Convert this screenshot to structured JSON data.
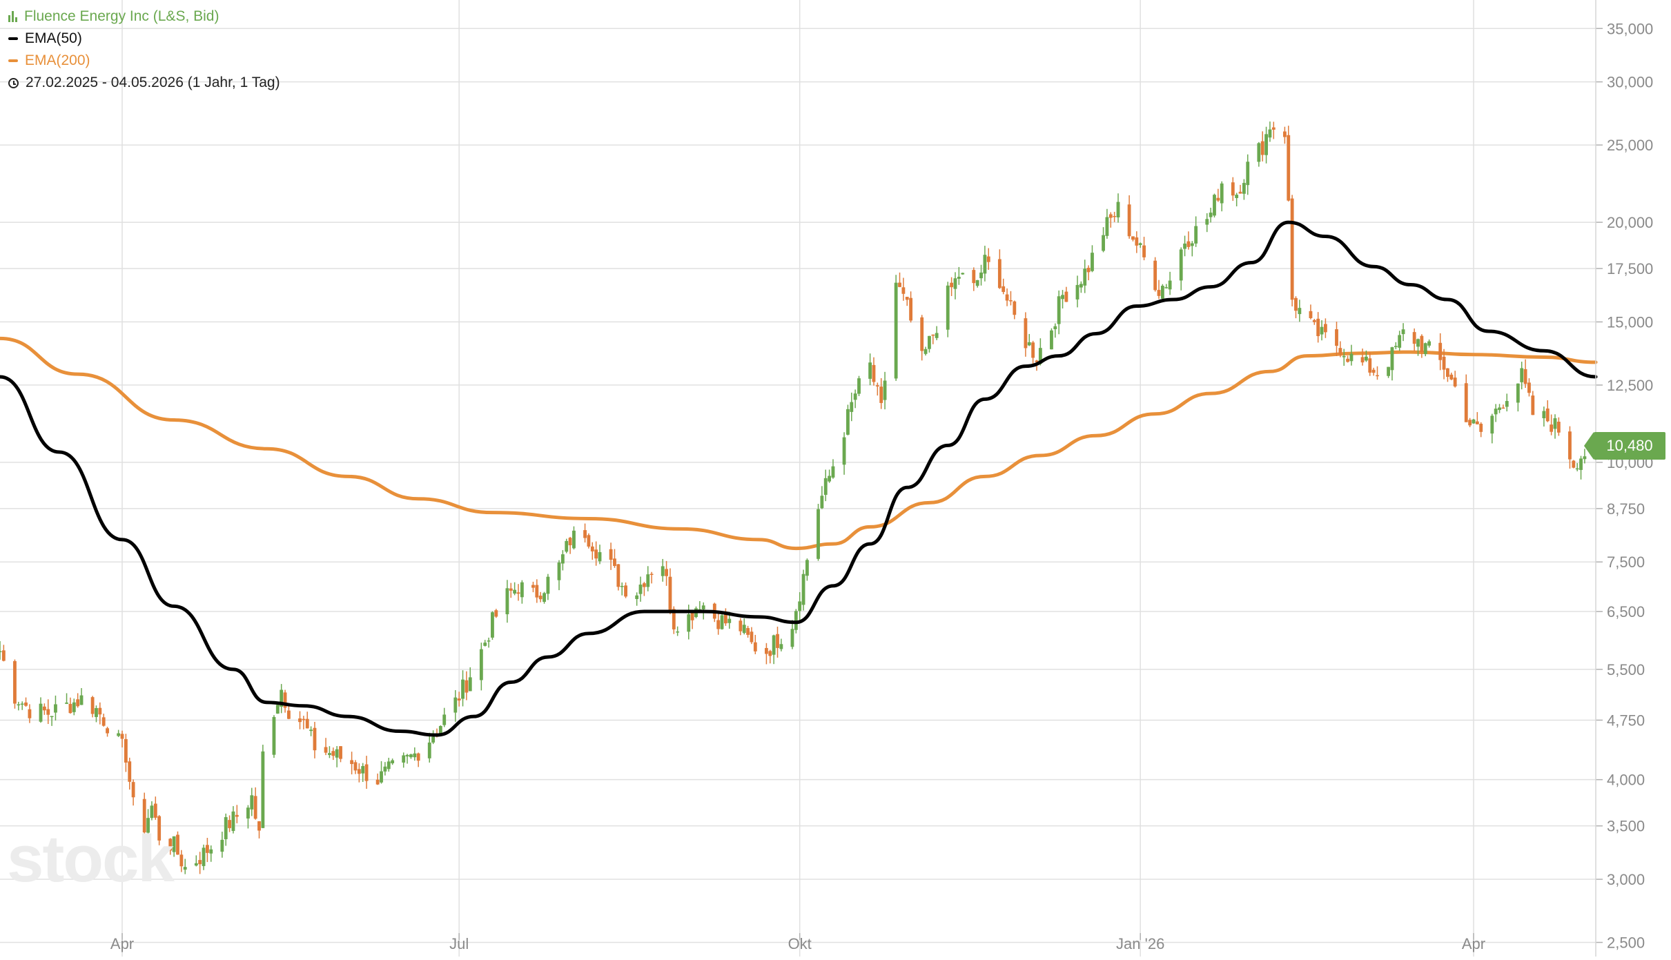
{
  "legend": {
    "instrument": "Fluence Energy Inc (L&S, Bid)",
    "ema50": "EMA(50)",
    "ema200": "EMA(200)",
    "range": "27.02.2025 - 04.05.2026  (1 Jahr, 1 Tag)"
  },
  "watermark": "stock",
  "last_price": "10,480",
  "colors": {
    "up": "#6aa84f",
    "down": "#e07b39",
    "ema50": "#000000",
    "ema200": "#e8903a",
    "grid": "#e0e0e0",
    "axis_text": "#8a8a8a",
    "instrument_text": "#6aa84f"
  },
  "chart_data": {
    "type": "candlestick",
    "title": "Fluence Energy Inc (L&S, Bid)",
    "y_scale": "log",
    "ylim": [
      2.4,
      38
    ],
    "xlim": [
      "2025-02-27",
      "2026-05-04"
    ],
    "y_ticks": [
      {
        "value": 35,
        "label": "35,000"
      },
      {
        "value": 30,
        "label": "30,000"
      },
      {
        "value": 25,
        "label": "25,000"
      },
      {
        "value": 20,
        "label": "20,000"
      },
      {
        "value": 17.5,
        "label": "17,500"
      },
      {
        "value": 15,
        "label": "15,000"
      },
      {
        "value": 12.5,
        "label": "12,500"
      },
      {
        "value": 10,
        "label": "10,000"
      },
      {
        "value": 8.75,
        "label": "8,750"
      },
      {
        "value": 7.5,
        "label": "7,500"
      },
      {
        "value": 6.5,
        "label": "6,500"
      },
      {
        "value": 5.5,
        "label": "5,500"
      },
      {
        "value": 4.75,
        "label": "4,750"
      },
      {
        "value": 4,
        "label": "4,000"
      },
      {
        "value": 3.5,
        "label": "3,500"
      },
      {
        "value": 3,
        "label": "3,000"
      },
      {
        "value": 2.5,
        "label": "2,500"
      }
    ],
    "x_ticks": [
      {
        "date": "2025-04-01",
        "label": "Apr"
      },
      {
        "date": "2025-07-01",
        "label": "Jul"
      },
      {
        "date": "2025-10-01",
        "label": "Okt"
      },
      {
        "date": "2026-01-01",
        "label": "Jan '26"
      },
      {
        "date": "2026-04-01",
        "label": "Apr"
      }
    ],
    "grid": true,
    "price_series": {
      "name": "Fluence Energy Inc (L&S, Bid)",
      "close": [
        [
          "2025-02-27",
          5.8
        ],
        [
          "2025-03-03",
          5.1
        ],
        [
          "2025-03-07",
          4.9
        ],
        [
          "2025-03-12",
          4.85
        ],
        [
          "2025-03-17",
          4.95
        ],
        [
          "2025-03-21",
          5.05
        ],
        [
          "2025-03-25",
          4.9
        ],
        [
          "2025-03-28",
          4.7
        ],
        [
          "2025-04-02",
          4.3
        ],
        [
          "2025-04-04",
          3.7
        ],
        [
          "2025-04-07",
          3.5
        ],
        [
          "2025-04-09",
          3.7
        ],
        [
          "2025-04-11",
          3.4
        ],
        [
          "2025-04-15",
          3.3
        ],
        [
          "2025-04-18",
          3.1
        ],
        [
          "2025-04-22",
          3.2
        ],
        [
          "2025-04-25",
          3.3
        ],
        [
          "2025-04-29",
          3.5
        ],
        [
          "2025-05-02",
          3.6
        ],
        [
          "2025-05-06",
          3.8
        ],
        [
          "2025-05-08",
          3.4
        ],
        [
          "2025-05-09",
          4.3
        ],
        [
          "2025-05-12",
          4.9
        ],
        [
          "2025-05-14",
          5.2
        ],
        [
          "2025-05-16",
          4.9
        ],
        [
          "2025-05-20",
          4.7
        ],
        [
          "2025-05-23",
          4.4
        ],
        [
          "2025-05-28",
          4.3
        ],
        [
          "2025-06-02",
          4.2
        ],
        [
          "2025-06-05",
          4.1
        ],
        [
          "2025-06-09",
          4.0
        ],
        [
          "2025-06-12",
          4.1
        ],
        [
          "2025-06-16",
          4.2
        ],
        [
          "2025-06-19",
          4.3
        ],
        [
          "2025-06-23",
          4.5
        ],
        [
          "2025-06-26",
          4.7
        ],
        [
          "2025-06-30",
          5.0
        ],
        [
          "2025-07-03",
          5.3
        ],
        [
          "2025-07-07",
          5.8
        ],
        [
          "2025-07-10",
          6.3
        ],
        [
          "2025-07-14",
          6.8
        ],
        [
          "2025-07-17",
          7.0
        ],
        [
          "2025-07-21",
          6.8
        ],
        [
          "2025-07-24",
          7.0
        ],
        [
          "2025-07-28",
          7.4
        ],
        [
          "2025-07-31",
          8.0
        ],
        [
          "2025-08-04",
          8.2
        ],
        [
          "2025-08-07",
          7.8
        ],
        [
          "2025-08-11",
          7.4
        ],
        [
          "2025-08-14",
          7.0
        ],
        [
          "2025-08-18",
          6.9
        ],
        [
          "2025-08-21",
          7.3
        ],
        [
          "2025-08-25",
          7.5
        ],
        [
          "2025-08-28",
          6.3
        ],
        [
          "2025-09-01",
          6.4
        ],
        [
          "2025-09-04",
          6.7
        ],
        [
          "2025-09-08",
          6.4
        ],
        [
          "2025-09-11",
          6.3
        ],
        [
          "2025-09-15",
          6.2
        ],
        [
          "2025-09-18",
          5.9
        ],
        [
          "2025-09-22",
          5.8
        ],
        [
          "2025-09-25",
          6.0
        ],
        [
          "2025-09-29",
          6.3
        ],
        [
          "2025-10-02",
          7.2
        ],
        [
          "2025-10-06",
          8.8
        ],
        [
          "2025-10-09",
          9.6
        ],
        [
          "2025-10-13",
          11.0
        ],
        [
          "2025-10-16",
          12.2
        ],
        [
          "2025-10-20",
          13.2
        ],
        [
          "2025-10-23",
          11.6
        ],
        [
          "2025-10-27",
          16.8
        ],
        [
          "2025-10-30",
          15.6
        ],
        [
          "2025-11-03",
          13.4
        ],
        [
          "2025-11-06",
          14.5
        ],
        [
          "2025-11-10",
          16.2
        ],
        [
          "2025-11-13",
          17.2
        ],
        [
          "2025-11-17",
          16.5
        ],
        [
          "2025-11-20",
          17.8
        ],
        [
          "2025-11-24",
          17.0
        ],
        [
          "2025-11-27",
          15.5
        ],
        [
          "2025-12-01",
          14.2
        ],
        [
          "2025-12-04",
          13.6
        ],
        [
          "2025-12-08",
          14.8
        ],
        [
          "2025-12-11",
          16.2
        ],
        [
          "2025-12-15",
          16.8
        ],
        [
          "2025-12-18",
          17.6
        ],
        [
          "2025-12-22",
          19.5
        ],
        [
          "2025-12-26",
          20.8
        ],
        [
          "2025-12-30",
          19.2
        ],
        [
          "2026-01-02",
          18.0
        ],
        [
          "2026-01-06",
          16.5
        ],
        [
          "2026-01-09",
          17.0
        ],
        [
          "2026-01-13",
          19.0
        ],
        [
          "2026-01-16",
          19.5
        ],
        [
          "2026-01-20",
          20.5
        ],
        [
          "2026-01-23",
          22.5
        ],
        [
          "2026-01-27",
          21.8
        ],
        [
          "2026-01-30",
          23.5
        ],
        [
          "2026-02-03",
          25.0
        ],
        [
          "2026-02-05",
          26.5
        ],
        [
          "2026-02-09",
          26.0
        ],
        [
          "2026-02-10",
          21.0
        ],
        [
          "2026-02-11",
          16.0
        ],
        [
          "2026-02-13",
          15.5
        ],
        [
          "2026-02-17",
          14.6
        ],
        [
          "2026-02-20",
          14.3
        ],
        [
          "2026-02-24",
          14.0
        ],
        [
          "2026-02-27",
          13.5
        ],
        [
          "2026-03-03",
          13.2
        ],
        [
          "2026-03-06",
          13.0
        ],
        [
          "2026-03-10",
          13.6
        ],
        [
          "2026-03-13",
          14.5
        ],
        [
          "2026-03-17",
          14.2
        ],
        [
          "2026-03-20",
          13.8
        ],
        [
          "2026-03-24",
          13.2
        ],
        [
          "2026-03-27",
          12.4
        ],
        [
          "2026-03-31",
          11.2
        ],
        [
          "2026-04-03",
          10.9
        ],
        [
          "2026-04-07",
          11.6
        ],
        [
          "2026-04-10",
          12.2
        ],
        [
          "2026-04-14",
          12.8
        ],
        [
          "2026-04-17",
          11.5
        ],
        [
          "2026-04-21",
          11.3
        ],
        [
          "2026-04-24",
          11.0
        ],
        [
          "2026-04-28",
          10.0
        ],
        [
          "2026-04-30",
          10.2
        ],
        [
          "2026-05-04",
          10.48
        ]
      ]
    },
    "series": [
      {
        "name": "EMA(50)",
        "points": [
          [
            "2025-02-27",
            12.8
          ],
          [
            "2025-03-15",
            10.3
          ],
          [
            "2025-04-01",
            8.0
          ],
          [
            "2025-04-15",
            6.6
          ],
          [
            "2025-05-01",
            5.5
          ],
          [
            "2025-05-10",
            5.0
          ],
          [
            "2025-05-20",
            4.95
          ],
          [
            "2025-06-01",
            4.8
          ],
          [
            "2025-06-15",
            4.6
          ],
          [
            "2025-06-25",
            4.55
          ],
          [
            "2025-07-05",
            4.8
          ],
          [
            "2025-07-15",
            5.3
          ],
          [
            "2025-07-25",
            5.7
          ],
          [
            "2025-08-05",
            6.1
          ],
          [
            "2025-08-20",
            6.5
          ],
          [
            "2025-09-05",
            6.5
          ],
          [
            "2025-09-20",
            6.4
          ],
          [
            "2025-09-30",
            6.3
          ],
          [
            "2025-10-10",
            7.0
          ],
          [
            "2025-10-20",
            7.9
          ],
          [
            "2025-10-30",
            9.3
          ],
          [
            "2025-11-10",
            10.5
          ],
          [
            "2025-11-20",
            12.0
          ],
          [
            "2025-12-01",
            13.2
          ],
          [
            "2025-12-10",
            13.6
          ],
          [
            "2025-12-20",
            14.5
          ],
          [
            "2025-12-31",
            15.7
          ],
          [
            "2026-01-10",
            16.0
          ],
          [
            "2026-01-20",
            16.6
          ],
          [
            "2026-01-31",
            17.8
          ],
          [
            "2026-02-10",
            20.0
          ],
          [
            "2026-02-20",
            19.2
          ],
          [
            "2026-03-05",
            17.6
          ],
          [
            "2026-03-15",
            16.7
          ],
          [
            "2026-03-25",
            16.0
          ],
          [
            "2026-04-05",
            14.6
          ],
          [
            "2026-04-20",
            13.8
          ],
          [
            "2026-05-04",
            12.8
          ]
        ]
      },
      {
        "name": "EMA(200)",
        "points": [
          [
            "2025-02-27",
            14.3
          ],
          [
            "2025-03-20",
            12.9
          ],
          [
            "2025-04-15",
            11.3
          ],
          [
            "2025-05-10",
            10.4
          ],
          [
            "2025-06-01",
            9.6
          ],
          [
            "2025-06-20",
            9.0
          ],
          [
            "2025-07-10",
            8.65
          ],
          [
            "2025-08-05",
            8.5
          ],
          [
            "2025-08-30",
            8.25
          ],
          [
            "2025-09-20",
            8.0
          ],
          [
            "2025-09-30",
            7.8
          ],
          [
            "2025-10-10",
            7.9
          ],
          [
            "2025-10-20",
            8.3
          ],
          [
            "2025-11-05",
            8.9
          ],
          [
            "2025-11-20",
            9.6
          ],
          [
            "2025-12-05",
            10.2
          ],
          [
            "2025-12-20",
            10.8
          ],
          [
            "2026-01-05",
            11.5
          ],
          [
            "2026-01-20",
            12.2
          ],
          [
            "2026-02-05",
            13.0
          ],
          [
            "2026-02-15",
            13.6
          ],
          [
            "2026-03-01",
            13.7
          ],
          [
            "2026-03-15",
            13.75
          ],
          [
            "2026-04-01",
            13.65
          ],
          [
            "2026-04-20",
            13.55
          ],
          [
            "2026-05-04",
            13.35
          ]
        ]
      }
    ]
  }
}
